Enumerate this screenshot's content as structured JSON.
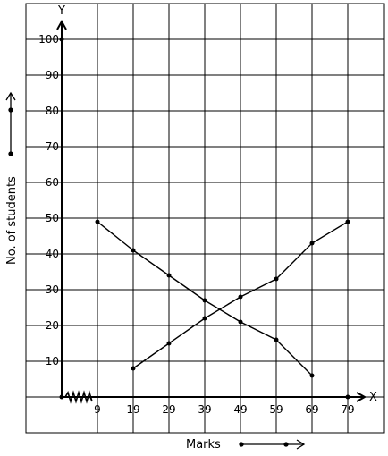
{
  "chart_data": {
    "type": "line",
    "title": "",
    "xlabel": "Marks",
    "ylabel": "No. of students",
    "x_axis_letter": "X",
    "y_axis_letter": "Y",
    "x_ticks": [
      9,
      19,
      29,
      39,
      49,
      59,
      69,
      79
    ],
    "y_ticks": [
      10,
      20,
      30,
      40,
      50,
      60,
      70,
      80,
      90,
      100
    ],
    "y_tick_labels": [
      "10",
      "20",
      "30",
      "40",
      "50",
      "60",
      "70",
      "80",
      "90",
      "100"
    ],
    "xlim": [
      -1,
      84
    ],
    "ylim": [
      -10,
      110
    ],
    "grid": true,
    "axis_break_on_x": true,
    "series": [
      {
        "x": [
          9,
          19,
          29,
          39,
          49,
          59,
          69
        ],
        "y": [
          49,
          41,
          34,
          27,
          21,
          16,
          6
        ]
      },
      {
        "x": [
          19,
          29,
          39,
          49,
          59,
          69,
          79
        ],
        "y": [
          8,
          15,
          22,
          28,
          33,
          43,
          49
        ]
      }
    ],
    "colors": {
      "line": "#000000",
      "grid": "#000000"
    }
  }
}
